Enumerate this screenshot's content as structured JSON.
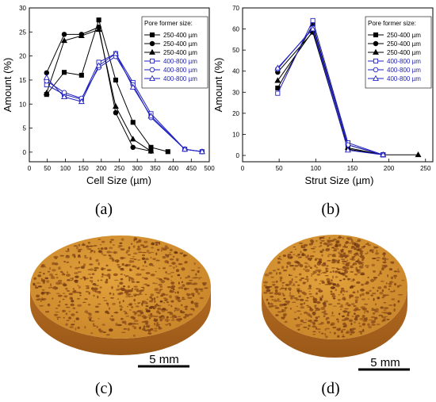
{
  "legend_title": "Pore former size:",
  "colors": {
    "black": "#000000",
    "blue": "#2020c0",
    "sample": "#d4912e",
    "sample_dark": "#8a4a18",
    "sample_side": "#b86f22"
  },
  "chart_data": [
    {
      "type": "line",
      "panel_label": "(a)",
      "xlabel": "Cell Size (µm)",
      "ylabel": "Amount  (%)",
      "xlim": [
        0,
        500
      ],
      "ylim": [
        -2,
        30
      ],
      "xticks": [
        "0",
        "50",
        "100",
        "150",
        "200",
        "250",
        "300",
        "350",
        "400",
        "450",
        "500"
      ],
      "yticks": [
        "0",
        "5",
        "10",
        "15",
        "20",
        "25",
        "30"
      ],
      "grid": false,
      "legend_position": "top-right",
      "series": [
        {
          "name": "250-400 µm",
          "color": "#000000",
          "marker": "square-filled",
          "x": [
            48,
            97,
            145,
            193,
            240,
            288,
            338,
            385
          ],
          "y": [
            12.0,
            16.6,
            16.0,
            27.5,
            15.0,
            6.2,
            1.0,
            0.1
          ]
        },
        {
          "name": "250-400 µm",
          "color": "#000000",
          "marker": "circle-filled",
          "x": [
            48,
            97,
            145,
            193,
            240,
            288,
            338
          ],
          "y": [
            16.5,
            24.5,
            24.5,
            26.0,
            8.2,
            1.0,
            0.2
          ]
        },
        {
          "name": "250-400 µm",
          "color": "#000000",
          "marker": "triangle-filled",
          "x": [
            48,
            97,
            145,
            193,
            240,
            288,
            338
          ],
          "y": [
            12.3,
            23.2,
            24.2,
            25.5,
            9.5,
            2.7,
            0.2
          ]
        },
        {
          "name": "400-800 µm",
          "color": "#2020c0",
          "marker": "square-open",
          "x": [
            48,
            97,
            145,
            193,
            240,
            288,
            338,
            432,
            480
          ],
          "y": [
            14.0,
            12.0,
            11.0,
            18.7,
            20.5,
            14.5,
            8.0,
            0.6,
            0.1
          ]
        },
        {
          "name": "400-800 µm",
          "color": "#2020c0",
          "marker": "circle-open",
          "x": [
            48,
            97,
            145,
            193,
            240,
            288,
            338,
            432,
            480
          ],
          "y": [
            14.8,
            12.4,
            11.2,
            17.6,
            19.9,
            14.0,
            7.2,
            0.6,
            0.1
          ]
        },
        {
          "name": "400-800 µm",
          "color": "#2020c0",
          "marker": "triangle-open",
          "x": [
            48,
            97,
            145,
            193,
            240,
            288,
            338,
            432,
            480
          ],
          "y": [
            15.5,
            11.5,
            10.5,
            18.0,
            20.5,
            13.5,
            7.5,
            0.6,
            0.1
          ]
        }
      ]
    },
    {
      "type": "line",
      "panel_label": "(b)",
      "xlabel": "Strut Size (µm)",
      "ylabel": "Amount  (%)",
      "xlim": [
        0,
        260
      ],
      "ylim": [
        -3,
        70
      ],
      "xticks": [
        "0",
        "50",
        "100",
        "150",
        "200",
        "250"
      ],
      "yticks": [
        "0",
        "10",
        "20",
        "30",
        "40",
        "50",
        "60",
        "70"
      ],
      "grid": false,
      "legend_position": "top-right",
      "series": [
        {
          "name": "250-400 µm",
          "color": "#000000",
          "marker": "square-filled",
          "x": [
            48,
            96,
            144,
            192
          ],
          "y": [
            32.0,
            62.0,
            5.0,
            0.3
          ]
        },
        {
          "name": "250-400 µm",
          "color": "#000000",
          "marker": "circle-filled",
          "x": [
            48,
            96,
            144,
            192
          ],
          "y": [
            39.5,
            58.5,
            3.0,
            0.3
          ]
        },
        {
          "name": "250-400 µm",
          "color": "#000000",
          "marker": "triangle-filled",
          "x": [
            48,
            96,
            144,
            192,
            240
          ],
          "y": [
            35.5,
            59.0,
            3.6,
            0.3,
            0.3
          ]
        },
        {
          "name": "400-800 µm",
          "color": "#2020c0",
          "marker": "square-open",
          "x": [
            48,
            96,
            144,
            192
          ],
          "y": [
            29.5,
            64.0,
            6.0,
            0.3
          ]
        },
        {
          "name": "400-800 µm",
          "color": "#2020c0",
          "marker": "circle-open",
          "x": [
            48,
            96,
            144,
            192
          ],
          "y": [
            41.0,
            60.5,
            5.0,
            0.3
          ]
        },
        {
          "name": "400-800 µm",
          "color": "#2020c0",
          "marker": "triangle-open",
          "x": [
            48,
            96,
            144,
            192
          ],
          "y": [
            41.5,
            60.0,
            2.5,
            0.3
          ]
        }
      ]
    }
  ],
  "images": [
    {
      "panel_label": "(c)",
      "scale_label": "5 mm"
    },
    {
      "panel_label": "(d)",
      "scale_label": "5 mm"
    }
  ]
}
